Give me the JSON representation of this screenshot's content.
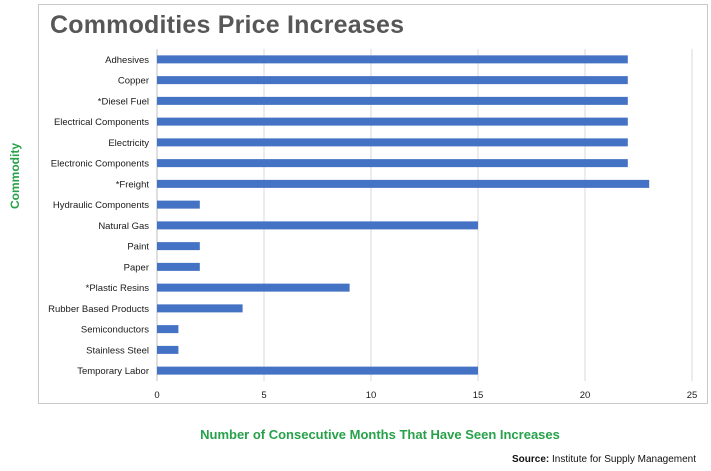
{
  "source": {
    "label": "Source:",
    "text": "Institute for Supply Management"
  },
  "chart_data": {
    "type": "bar",
    "orientation": "horizontal",
    "title": "Commodities Price Increases",
    "xlabel": "Number of Consecutive Months That Have Seen Increases",
    "ylabel": "Commodity",
    "categories": [
      "Adhesives",
      "Copper",
      "*Diesel Fuel",
      "Electrical Components",
      "Electricity",
      "Electronic Components",
      "*Freight",
      "Hydraulic Components",
      "Natural Gas",
      "Paint",
      "Paper",
      "*Plastic Resins",
      "Rubber Based Products",
      "Semiconductors",
      "Stainless Steel",
      "Temporary Labor"
    ],
    "values": [
      22,
      22,
      22,
      22,
      22,
      22,
      23,
      2,
      15,
      2,
      2,
      9,
      4,
      1,
      1,
      15
    ],
    "xlim": [
      0,
      25
    ],
    "xticks": [
      0,
      5,
      10,
      15,
      20,
      25
    ],
    "grid": true,
    "colors": {
      "bar": "#4472c4",
      "grid": "#d9d9d9",
      "axis_title": "#27a14a",
      "title": "#575757"
    }
  }
}
